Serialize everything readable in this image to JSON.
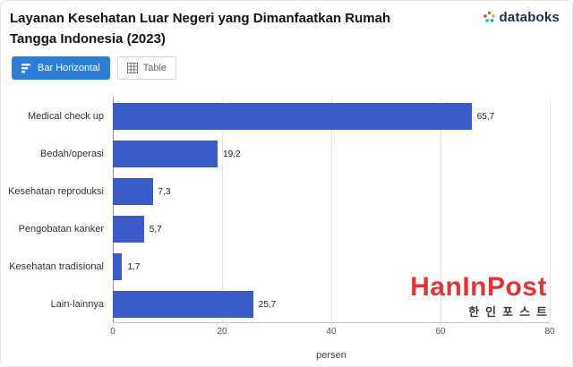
{
  "header": {
    "title": "Layanan Kesehatan Luar Negeri yang Dimanfaatkan Rumah Tangga Indonesia (2023)",
    "brand": "databoks"
  },
  "toolbar": {
    "bar_button": "Bar Horizontal",
    "table_button": "Table",
    "active_color": "#2b7fd6"
  },
  "chart_data": {
    "type": "bar",
    "orientation": "horizontal",
    "title": "Layanan Kesehatan Luar Negeri yang Dimanfaatkan Rumah Tangga Indonesia (2023)",
    "categories": [
      "Medical check up",
      "Bedah/operasi",
      "Kesehatan reproduksi",
      "Pengobatan kanker",
      "Kesehatan tradisional",
      "Lain-lainnya"
    ],
    "values": [
      65.7,
      19.2,
      7.3,
      5.7,
      1.7,
      25.7
    ],
    "value_labels": [
      "65,7",
      "19,2",
      "7,3",
      "5,7",
      "1,7",
      "25,7"
    ],
    "xlabel": "persen",
    "xlim": [
      0,
      80
    ],
    "xticks": [
      0,
      20,
      40,
      60,
      80
    ],
    "bar_color": "#3b5cc6",
    "grid": "vertical-only",
    "legend": "none"
  },
  "watermark": {
    "text": "HanInPost",
    "subtext": "한인포스트",
    "color": "#e03535"
  }
}
